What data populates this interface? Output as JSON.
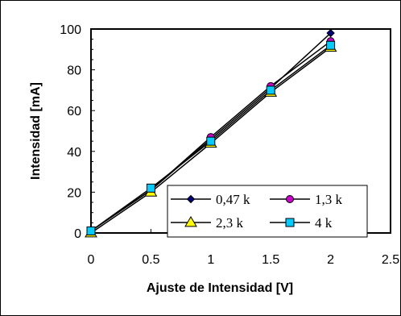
{
  "chart_data": {
    "type": "line",
    "xlabel": "Ajuste de Intensidad [V]",
    "ylabel": "Intensidad [mA]",
    "xlim": [
      0,
      2.5
    ],
    "ylim": [
      0,
      100
    ],
    "x_ticks": [
      "0",
      "0.5",
      "1",
      "1.5",
      "2",
      "2.5"
    ],
    "y_ticks": [
      "0",
      "20",
      "40",
      "60",
      "80",
      "100"
    ],
    "grid": false,
    "legend_placement": "bottom-right",
    "x": [
      0,
      0.5,
      1,
      1.5,
      2
    ],
    "series": [
      {
        "name": "0,47 k",
        "values": [
          1,
          21,
          46,
          71,
          98
        ],
        "marker": "diamond",
        "color": "#000080"
      },
      {
        "name": "1,3 k",
        "values": [
          1,
          21,
          47,
          72,
          94
        ],
        "marker": "circle",
        "color": "#cc00cc"
      },
      {
        "name": "2,3 k",
        "values": [
          0,
          20,
          44,
          69,
          91
        ],
        "marker": "triangle",
        "color": "#ffff00"
      },
      {
        "name": "4 k",
        "values": [
          1,
          22,
          45,
          70,
          92
        ],
        "marker": "square",
        "color": "#00ccff"
      }
    ]
  }
}
